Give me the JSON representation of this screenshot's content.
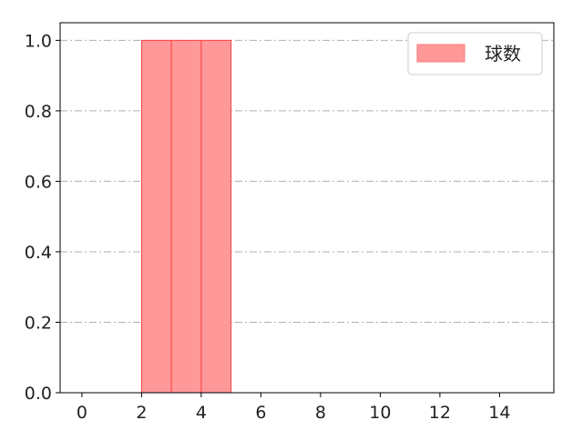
{
  "chart_data": {
    "type": "bar",
    "bins": [
      [
        2,
        3
      ],
      [
        3,
        4
      ],
      [
        4,
        5
      ]
    ],
    "values": [
      1,
      1,
      1
    ],
    "series": [
      {
        "name": "球数"
      }
    ],
    "xlim": [
      -0.73,
      15.82
    ],
    "ylim": [
      0,
      1.05
    ],
    "xticks": [
      "0",
      "2",
      "4",
      "6",
      "8",
      "10",
      "12",
      "14"
    ],
    "yticks": [
      "0.0",
      "0.2",
      "0.4",
      "0.6",
      "0.8",
      "1.0"
    ],
    "grid": "horizontal dash-dot",
    "legend": "top-right",
    "colors": {
      "bar_fill": "#ff9999",
      "bar_edge": "#ff4444",
      "grid": "#b0b0b0"
    }
  }
}
